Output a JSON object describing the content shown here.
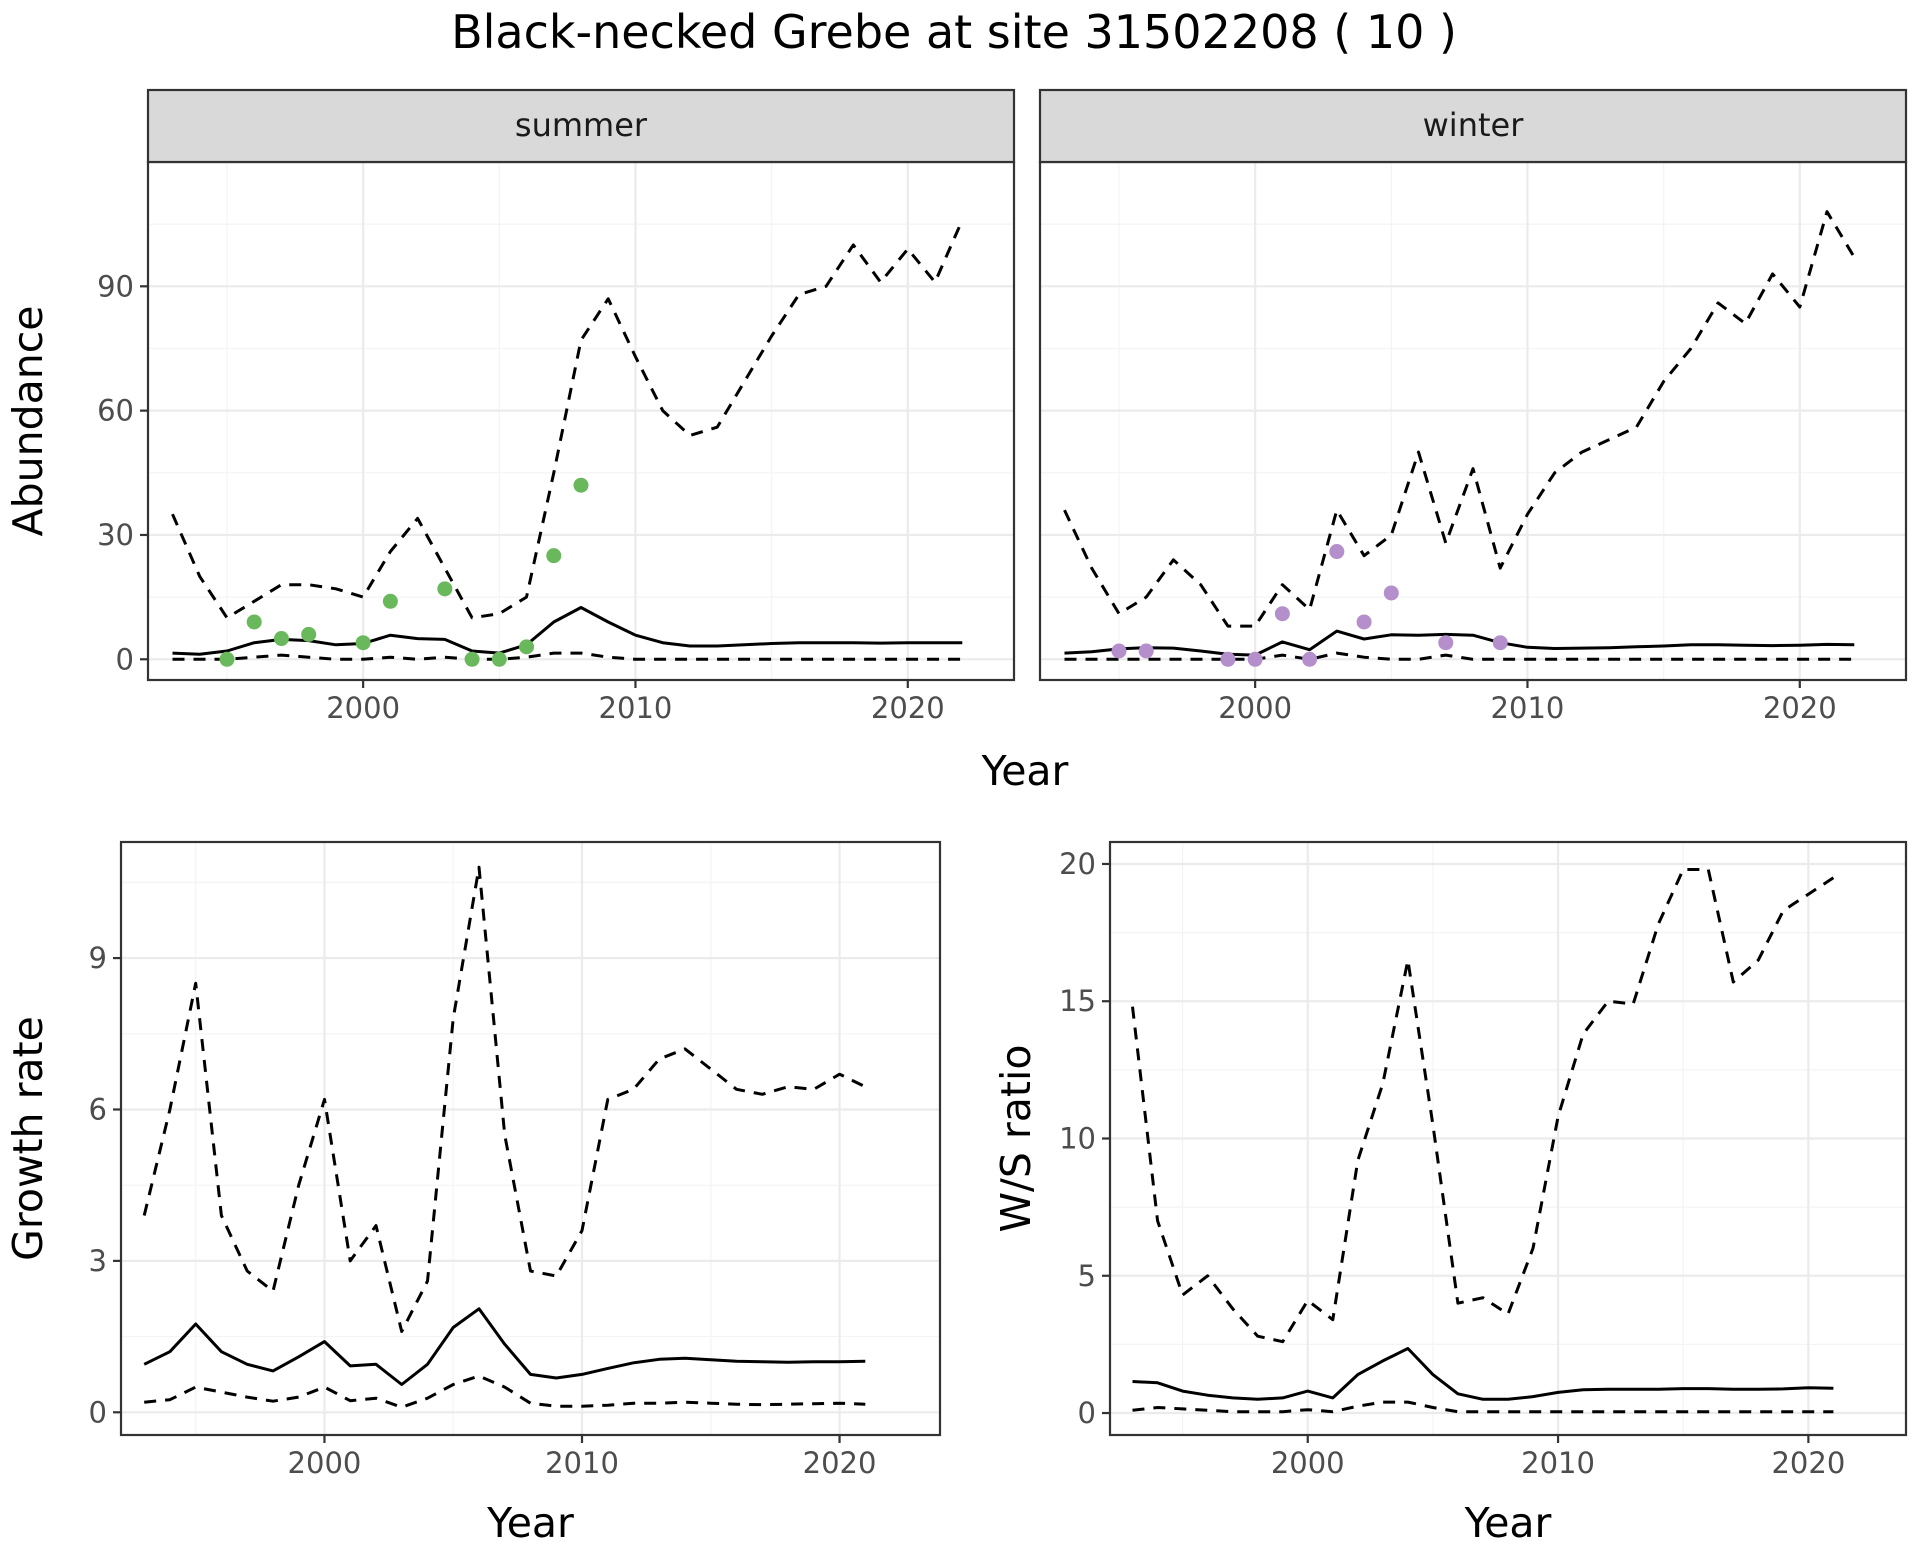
{
  "title": "Black-necked Grebe at site 31502208 ( 10 )",
  "chart_data": [
    {
      "type": "line",
      "id": "abundance",
      "ylabel": "Abundance",
      "xlabel": "Year",
      "xlim": [
        1992.1,
        2023.9
      ],
      "ylim": [
        -5,
        120
      ],
      "xticks": [
        2000,
        2010,
        2020
      ],
      "yticks": [
        0,
        30,
        60,
        90
      ],
      "facets": [
        {
          "label": "summer",
          "point_color": "#6ab85c",
          "lines": [
            {
              "style": "dashed",
              "x": [
                1993,
                1994,
                1995,
                1996,
                1997,
                1998,
                1999,
                2000,
                2001,
                2002,
                2003,
                2004,
                2005,
                2006,
                2007,
                2008,
                2009,
                2010,
                2011,
                2012,
                2013,
                2014,
                2015,
                2016,
                2017,
                2018,
                2019,
                2020,
                2021,
                2022
              ],
              "y": [
                35,
                20,
                10,
                14,
                18,
                18,
                17,
                15,
                26,
                34,
                22,
                10,
                11,
                15,
                45,
                77,
                87,
                73,
                60,
                54,
                56,
                67,
                78,
                88,
                90,
                100,
                91,
                99,
                91,
                106
              ]
            },
            {
              "style": "solid",
              "x": [
                1993,
                1994,
                1995,
                1996,
                1997,
                1998,
                1999,
                2000,
                2001,
                2002,
                2003,
                2004,
                2005,
                2006,
                2007,
                2008,
                2009,
                2010,
                2011,
                2012,
                2013,
                2014,
                2015,
                2016,
                2017,
                2018,
                2019,
                2020,
                2021,
                2022
              ],
              "y": [
                1.5,
                1.2,
                2,
                4,
                4.8,
                4.5,
                3.5,
                3.8,
                5.8,
                5,
                4.8,
                2,
                1.5,
                3.5,
                9,
                12.5,
                9,
                5.8,
                4,
                3.2,
                3.2,
                3.5,
                3.8,
                4,
                4,
                4,
                3.9,
                4,
                4,
                4
              ]
            },
            {
              "style": "dashed",
              "x": [
                1993,
                1994,
                1995,
                1996,
                1997,
                1998,
                1999,
                2000,
                2001,
                2002,
                2003,
                2004,
                2005,
                2006,
                2007,
                2008,
                2009,
                2010,
                2011,
                2012,
                2013,
                2014,
                2015,
                2016,
                2017,
                2018,
                2019,
                2020,
                2021,
                2022
              ],
              "y": [
                0,
                0,
                0,
                0.5,
                1,
                0.5,
                0,
                0,
                0.5,
                0,
                0.5,
                0,
                0,
                0.5,
                1.5,
                1.5,
                0.5,
                0,
                0,
                0,
                0,
                0,
                0,
                0,
                0,
                0,
                0,
                0,
                0,
                0
              ]
            }
          ],
          "points": {
            "x": [
              1995,
              1996,
              1997,
              1998,
              2000,
              2001,
              2003,
              2004,
              2005,
              2006,
              2007,
              2008
            ],
            "y": [
              0,
              9,
              5,
              6,
              4,
              14,
              17,
              0,
              0,
              3,
              25,
              42
            ]
          }
        },
        {
          "label": "winter",
          "point_color": "#b48fcc",
          "lines": [
            {
              "style": "dashed",
              "x": [
                1993,
                1994,
                1995,
                1996,
                1997,
                1998,
                1999,
                2000,
                2001,
                2002,
                2003,
                2004,
                2005,
                2006,
                2007,
                2008,
                2009,
                2010,
                2011,
                2012,
                2013,
                2014,
                2015,
                2016,
                2017,
                2018,
                2019,
                2020,
                2021,
                2022
              ],
              "y": [
                36,
                22,
                11,
                15,
                24,
                18,
                8,
                8,
                18,
                12,
                36,
                25,
                30,
                50,
                28,
                46,
                22,
                35,
                45,
                50,
                53,
                56,
                67,
                75,
                86,
                81,
                93,
                85,
                108,
                97
              ]
            },
            {
              "style": "solid",
              "x": [
                1993,
                1994,
                1995,
                1996,
                1997,
                1998,
                1999,
                2000,
                2001,
                2002,
                2003,
                2004,
                2005,
                2006,
                2007,
                2008,
                2009,
                2010,
                2011,
                2012,
                2013,
                2014,
                2015,
                2016,
                2017,
                2018,
                2019,
                2020,
                2021,
                2022
              ],
              "y": [
                1.5,
                1.8,
                2.5,
                2.8,
                2.7,
                2,
                1.2,
                1,
                4.2,
                2.3,
                6.8,
                4.9,
                5.9,
                5.8,
                6,
                5.8,
                4,
                2.9,
                2.6,
                2.7,
                2.8,
                3,
                3.2,
                3.5,
                3.5,
                3.4,
                3.3,
                3.4,
                3.6,
                3.5
              ]
            },
            {
              "style": "dashed",
              "x": [
                1993,
                1994,
                1995,
                1996,
                1997,
                1998,
                1999,
                2000,
                2001,
                2002,
                2003,
                2004,
                2005,
                2006,
                2007,
                2008,
                2009,
                2010,
                2011,
                2012,
                2013,
                2014,
                2015,
                2016,
                2017,
                2018,
                2019,
                2020,
                2021,
                2022
              ],
              "y": [
                0,
                0,
                0,
                0,
                0,
                0,
                0,
                0,
                1,
                0,
                1.5,
                0.5,
                0,
                0,
                1,
                0,
                0,
                0,
                0,
                0,
                0,
                0,
                0,
                0,
                0,
                0,
                0,
                0,
                0,
                0
              ]
            }
          ],
          "points": {
            "x": [
              1995,
              1996,
              1999,
              2000,
              2001,
              2002,
              2003,
              2004,
              2005,
              2007,
              2009
            ],
            "y": [
              2,
              2,
              0,
              0,
              11,
              0,
              26,
              9,
              16,
              4,
              4
            ]
          }
        }
      ]
    },
    {
      "type": "line",
      "id": "growth",
      "ylabel": "Growth rate",
      "xlabel": "Year",
      "xlim": [
        1992.1,
        2023.9
      ],
      "ylim": [
        -0.45,
        11.3
      ],
      "xticks": [
        2000,
        2010,
        2020
      ],
      "yticks": [
        0,
        3,
        6,
        9
      ],
      "lines": [
        {
          "style": "dashed",
          "x": [
            1993,
            1994,
            1995,
            1996,
            1997,
            1998,
            1999,
            2000,
            2001,
            2002,
            2003,
            2004,
            2005,
            2006,
            2007,
            2008,
            2009,
            2010,
            2011,
            2012,
            2013,
            2014,
            2015,
            2016,
            2017,
            2018,
            2019,
            2020,
            2021
          ],
          "y": [
            3.9,
            6.0,
            8.5,
            3.9,
            2.8,
            2.4,
            4.5,
            6.2,
            3.0,
            3.7,
            1.6,
            2.6,
            7.8,
            10.8,
            5.5,
            2.8,
            2.7,
            3.6,
            6.2,
            6.4,
            7.0,
            7.2,
            6.8,
            6.4,
            6.3,
            6.45,
            6.4,
            6.7,
            6.45
          ]
        },
        {
          "style": "solid",
          "x": [
            1993,
            1994,
            1995,
            1996,
            1997,
            1998,
            1999,
            2000,
            2001,
            2002,
            2003,
            2004,
            2005,
            2006,
            2007,
            2008,
            2009,
            2010,
            2011,
            2012,
            2013,
            2014,
            2015,
            2016,
            2017,
            2018,
            2019,
            2020,
            2021
          ],
          "y": [
            0.95,
            1.2,
            1.75,
            1.2,
            0.95,
            0.82,
            1.1,
            1.4,
            0.92,
            0.95,
            0.55,
            0.95,
            1.68,
            2.05,
            1.35,
            0.75,
            0.68,
            0.75,
            0.87,
            0.98,
            1.05,
            1.07,
            1.04,
            1.01,
            1.0,
            0.99,
            1.0,
            1.0,
            1.01
          ]
        },
        {
          "style": "dashed",
          "x": [
            1993,
            1994,
            1995,
            1996,
            1997,
            1998,
            1999,
            2000,
            2001,
            2002,
            2003,
            2004,
            2005,
            2006,
            2007,
            2008,
            2009,
            2010,
            2011,
            2012,
            2013,
            2014,
            2015,
            2016,
            2017,
            2018,
            2019,
            2020,
            2021
          ],
          "y": [
            0.2,
            0.25,
            0.5,
            0.4,
            0.3,
            0.22,
            0.3,
            0.5,
            0.23,
            0.28,
            0.1,
            0.28,
            0.55,
            0.72,
            0.5,
            0.18,
            0.12,
            0.12,
            0.14,
            0.18,
            0.18,
            0.2,
            0.18,
            0.16,
            0.15,
            0.16,
            0.17,
            0.18,
            0.16
          ]
        }
      ]
    },
    {
      "type": "line",
      "id": "ratio",
      "ylabel": "W/S ratio",
      "xlabel": "Year",
      "xlim": [
        1992.1,
        2023.9
      ],
      "ylim": [
        -0.8,
        20.8
      ],
      "xticks": [
        2000,
        2010,
        2020
      ],
      "yticks": [
        0,
        5,
        10,
        15,
        20
      ],
      "lines": [
        {
          "style": "dashed",
          "x": [
            1993,
            1994,
            1995,
            1996,
            1997,
            1998,
            1999,
            2000,
            2001,
            2002,
            2003,
            2004,
            2005,
            2006,
            2007,
            2008,
            2009,
            2010,
            2011,
            2012,
            2013,
            2014,
            2015,
            2016,
            2017,
            2018,
            2019,
            2020,
            2021
          ],
          "y": [
            14.8,
            7.0,
            4.3,
            5.0,
            3.8,
            2.8,
            2.6,
            4.1,
            3.4,
            9.2,
            12.0,
            16.5,
            10.5,
            4.0,
            4.2,
            3.6,
            6.0,
            10.8,
            13.8,
            15.0,
            14.9,
            17.8,
            19.8,
            19.8,
            15.7,
            16.5,
            18.3,
            18.9,
            19.5
          ]
        },
        {
          "style": "solid",
          "x": [
            1993,
            1994,
            1995,
            1996,
            1997,
            1998,
            1999,
            2000,
            2001,
            2002,
            2003,
            2004,
            2005,
            2006,
            2007,
            2008,
            2009,
            2010,
            2011,
            2012,
            2013,
            2014,
            2015,
            2016,
            2017,
            2018,
            2019,
            2020,
            2021
          ],
          "y": [
            1.15,
            1.1,
            0.8,
            0.65,
            0.55,
            0.5,
            0.55,
            0.8,
            0.55,
            1.4,
            1.9,
            2.35,
            1.4,
            0.7,
            0.5,
            0.5,
            0.6,
            0.75,
            0.85,
            0.87,
            0.87,
            0.87,
            0.89,
            0.89,
            0.87,
            0.87,
            0.88,
            0.92,
            0.9
          ]
        },
        {
          "style": "dashed",
          "x": [
            1993,
            1994,
            1995,
            1996,
            1997,
            1998,
            1999,
            2000,
            2001,
            2002,
            2003,
            2004,
            2005,
            2006,
            2007,
            2008,
            2009,
            2010,
            2011,
            2012,
            2013,
            2014,
            2015,
            2016,
            2017,
            2018,
            2019,
            2020,
            2021
          ],
          "y": [
            0.1,
            0.2,
            0.15,
            0.1,
            0.05,
            0.05,
            0.05,
            0.12,
            0.05,
            0.25,
            0.4,
            0.4,
            0.2,
            0.05,
            0.05,
            0.05,
            0.05,
            0.05,
            0.05,
            0.05,
            0.05,
            0.05,
            0.05,
            0.05,
            0.05,
            0.05,
            0.05,
            0.05,
            0.05
          ]
        }
      ]
    }
  ]
}
